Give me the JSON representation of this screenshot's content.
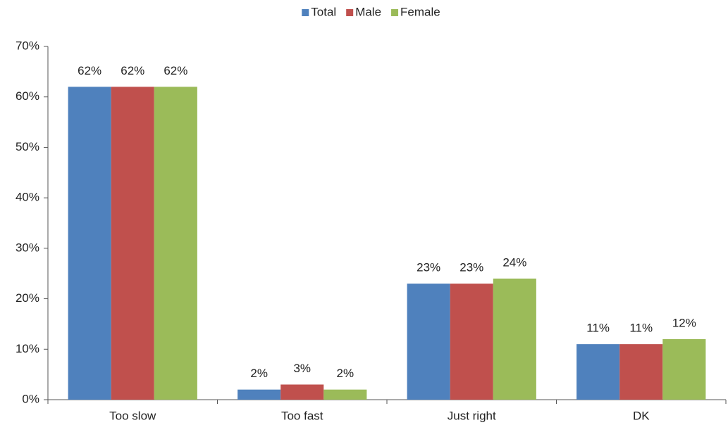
{
  "chart_data": {
    "type": "bar",
    "categories": [
      "Too slow",
      "Too fast",
      "Just right",
      "DK"
    ],
    "series": [
      {
        "name": "Total",
        "color": "#4f81bd",
        "values": [
          62,
          2,
          23,
          11
        ],
        "value_labels": [
          "62%",
          "2%",
          "23%",
          "11%"
        ]
      },
      {
        "name": "Male",
        "color": "#c0504d",
        "values": [
          62,
          3,
          23,
          11
        ],
        "value_labels": [
          "62%",
          "3%",
          "23%",
          "11%"
        ]
      },
      {
        "name": "Female",
        "color": "#9bbb59",
        "values": [
          62,
          2,
          24,
          12
        ],
        "value_labels": [
          "62%",
          "2%",
          "24%",
          "12%"
        ]
      }
    ],
    "ylim": [
      0,
      70
    ],
    "yticks": [
      {
        "value": 0,
        "label": "0%"
      },
      {
        "value": 10,
        "label": "10%"
      },
      {
        "value": 20,
        "label": "20%"
      },
      {
        "value": 30,
        "label": "30%"
      },
      {
        "value": 40,
        "label": "40%"
      },
      {
        "value": 50,
        "label": "50%"
      },
      {
        "value": 60,
        "label": "60%"
      },
      {
        "value": 70,
        "label": "70%"
      }
    ],
    "grid": false,
    "legend": "top"
  }
}
